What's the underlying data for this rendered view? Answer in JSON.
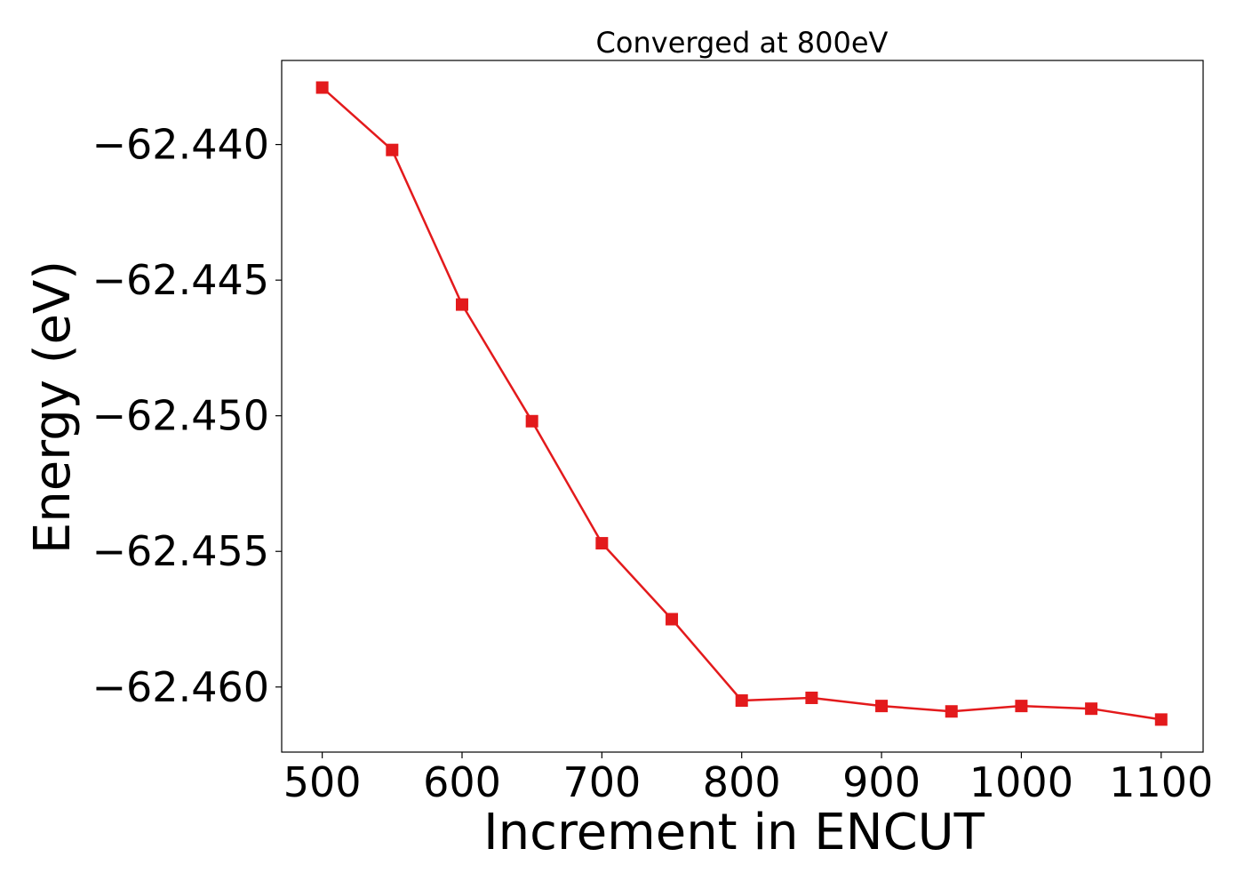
{
  "chart_data": {
    "type": "line",
    "title": "Converged at 800eV",
    "xlabel": "Increment in ENCUT",
    "ylabel": "Energy (eV)",
    "xlim": [
      471,
      1130
    ],
    "ylim": [
      -62.4624,
      -62.4369
    ],
    "xticks": [
      500,
      600,
      700,
      800,
      900,
      1000,
      1100
    ],
    "yticks": [
      -62.44,
      -62.445,
      -62.45,
      -62.455,
      -62.46
    ],
    "ytick_labels": [
      "−62.440",
      "−62.445",
      "−62.450",
      "−62.455",
      "−62.460"
    ],
    "grid": false,
    "series": [
      {
        "color": "#e31a1c",
        "marker": "square",
        "x": [
          500,
          550,
          600,
          650,
          700,
          750,
          800,
          850,
          900,
          950,
          1000,
          1050,
          1100
        ],
        "y": [
          -62.4379,
          -62.4402,
          -62.4459,
          -62.4502,
          -62.4547,
          -62.4575,
          -62.4605,
          -62.4604,
          -62.4607,
          -62.4609,
          -62.4607,
          -62.4608,
          -62.4612
        ]
      }
    ]
  }
}
